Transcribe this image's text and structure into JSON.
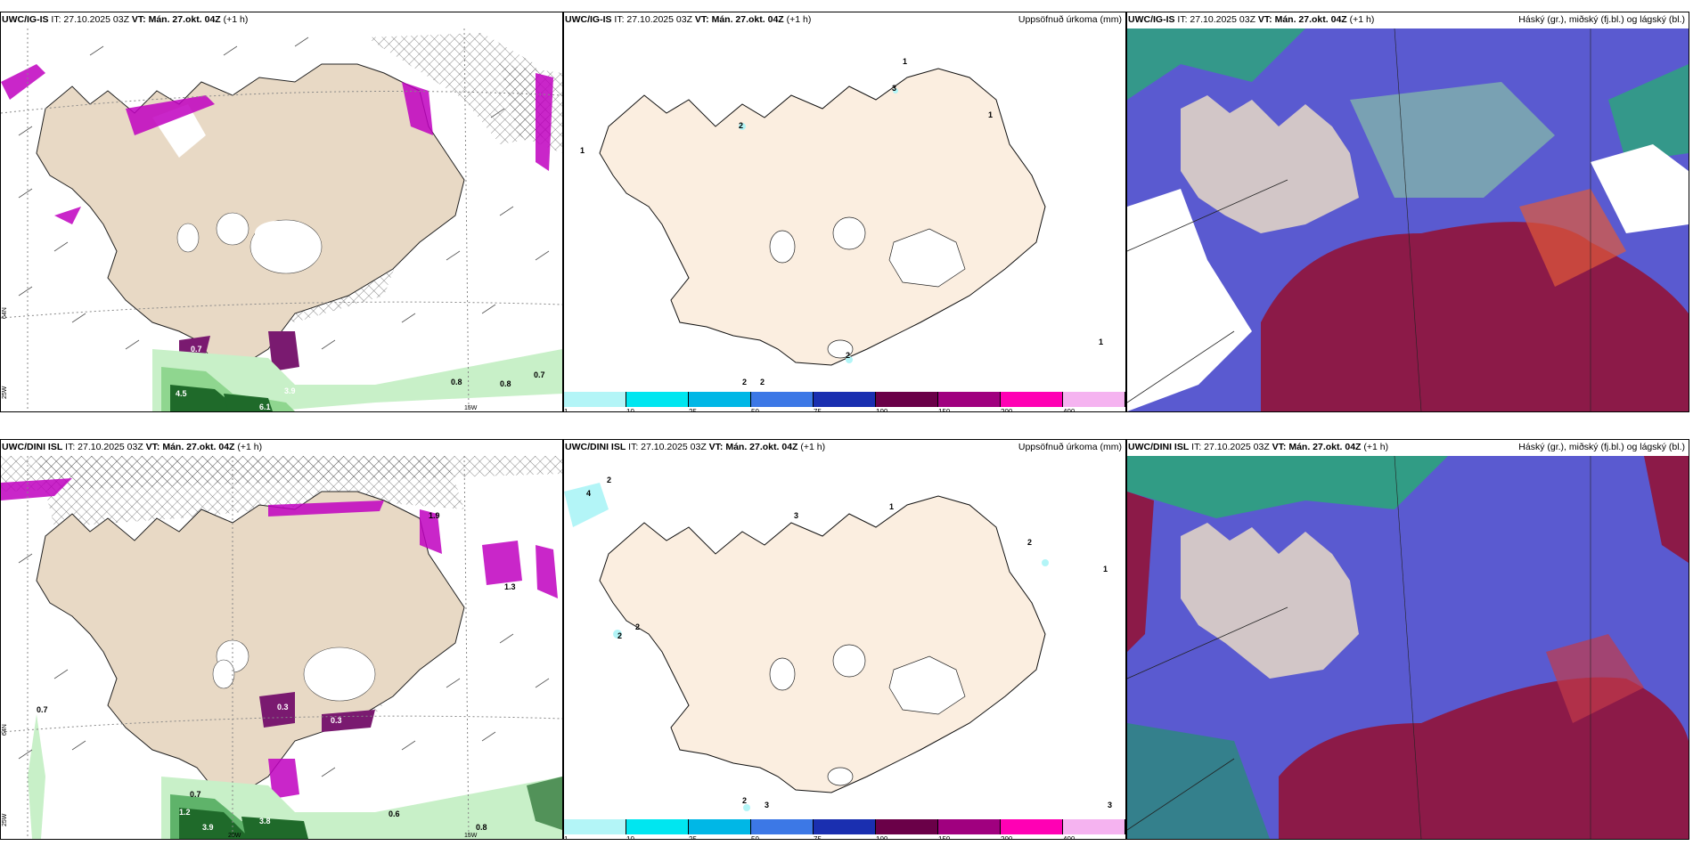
{
  "rows": [
    {
      "model": "UWC/IG-IS",
      "panels": [
        {
          "model": "UWC/IG-IS",
          "it": "IT: 27.10.2025 03Z",
          "vt": "VT: Mán. 27.okt. 04Z",
          "lead": "(+1 h)",
          "title": ""
        },
        {
          "model": "UWC/IG-IS",
          "it": "IT: 27.10.2025 03Z",
          "vt": "VT: Mán. 27.okt. 04Z",
          "lead": "(+1 h)",
          "title": "Uppsöfnuð úrkoma (mm)"
        },
        {
          "model": "UWC/IG-IS",
          "it": "IT: 27.10.2025 03Z",
          "vt": "VT: Mán. 27.okt. 04Z",
          "lead": "(+1 h)",
          "title": "Háský (gr.), miðský (fj.bl.) og lágský (bl.)"
        }
      ],
      "precip_labels": [
        "1",
        "3",
        "2",
        "1",
        "1",
        "1",
        "2",
        "2",
        "2"
      ],
      "wind_labels": [
        "0.8",
        "0.8",
        "0.7",
        "6.1",
        "4.5",
        "3.9",
        "0.7"
      ],
      "axis_labels": [
        "25W",
        "15W",
        "64N"
      ]
    },
    {
      "model": "UWC/DINI ISL",
      "panels": [
        {
          "model": "UWC/DINI ISL",
          "it": "IT: 27.10.2025 03Z",
          "vt": "VT: Mán. 27.okt. 04Z",
          "lead": "(+1 h)",
          "title": ""
        },
        {
          "model": "UWC/DINI ISL",
          "it": "IT: 27.10.2025 03Z",
          "vt": "VT: Mán. 27.okt. 04Z",
          "lead": "(+1 h)",
          "title": "Uppsöfnuð úrkoma (mm)"
        },
        {
          "model": "UWC/DINI ISL",
          "it": "IT: 27.10.2025 03Z",
          "vt": "VT: Mán. 27.okt. 04Z",
          "lead": "(+1 h)",
          "title": "Háský (gr.), miðský (fj.bl.) og lágský (bl.)"
        }
      ],
      "precip_labels": [
        "2",
        "4",
        "3",
        "1",
        "2",
        "1",
        "2",
        "2",
        "2",
        "3",
        "3"
      ],
      "wind_labels": [
        "0.7",
        "0.7",
        "0.6",
        "0.8",
        "3.9",
        "1.2",
        "3.8",
        "1.9",
        "1.3",
        "0.3",
        "0.3"
      ],
      "axis_labels": [
        "25W",
        "20W",
        "15W",
        "64N"
      ]
    }
  ],
  "colorbar": {
    "colors": [
      "#b3f5f7",
      "#00e6f0",
      "#00b7e6",
      "#3c78e6",
      "#1a2fb0",
      "#6a0048",
      "#a0007f",
      "#ff00b4",
      "#f5b3f0"
    ],
    "ticks": [
      "1",
      "10",
      "25",
      "50",
      "75",
      "100",
      "150",
      "200",
      "400"
    ]
  },
  "colors": {
    "land": "#e8d9c5",
    "land_plain": "#fbeee0",
    "wind_green": "#c8f0c8",
    "purple": "#c000c0",
    "cloud_blue": "#5a5ad0",
    "cloud_red": "#8c1a48",
    "cloud_green": "#2aa878"
  }
}
